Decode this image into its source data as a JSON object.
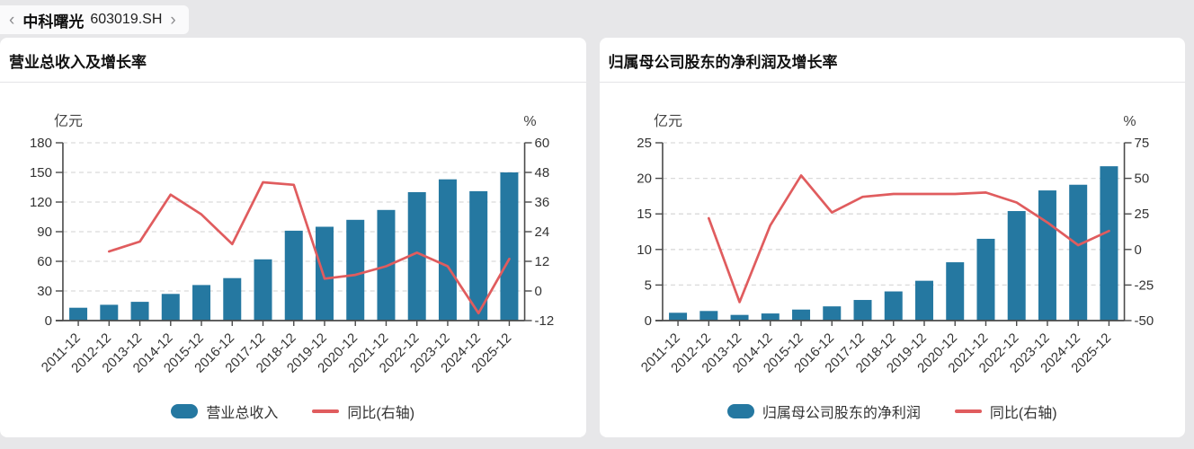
{
  "breadcrumb": {
    "prev": "‹",
    "next": "›",
    "stock_name": "中科曙光",
    "stock_code": "603019.SH"
  },
  "colors": {
    "page_bg": "#e7e7e9",
    "panel_bg": "#ffffff",
    "bar": "#2578a1",
    "line": "#e05c5e",
    "grid": "#d9d9d9",
    "axis": "#4a4a4a",
    "tick_text": "#333333",
    "unit_text": "#444444"
  },
  "chart_data": [
    {
      "type": "bar+line",
      "title": "营业总收入及增长率",
      "categories": [
        "2011-12",
        "2012-12",
        "2013-12",
        "2014-12",
        "2015-12",
        "2016-12",
        "2017-12",
        "2018-12",
        "2019-12",
        "2020-12",
        "2021-12",
        "2022-12",
        "2023-12",
        "2024-12",
        "2025-12"
      ],
      "series": [
        {
          "name": "营业总收入",
          "type": "bar",
          "axis": "left",
          "unit": "亿元",
          "color": "#2578a1",
          "values": [
            13,
            16,
            19,
            27,
            36,
            43,
            62,
            91,
            95,
            102,
            112,
            130,
            143,
            131,
            150
          ]
        },
        {
          "name": "同比(右轴)",
          "type": "line",
          "axis": "right",
          "unit": "%",
          "color": "#e05c5e",
          "values": [
            null,
            16,
            20,
            39,
            31,
            19,
            44,
            43,
            5,
            6.5,
            10,
            15.5,
            10,
            -9,
            13
          ]
        }
      ],
      "left_axis": {
        "label": "亿元",
        "min": 0,
        "max": 180,
        "ticks": [
          0,
          30,
          60,
          90,
          120,
          150,
          180
        ]
      },
      "right_axis": {
        "label": "%",
        "min": -12,
        "max": 60,
        "ticks": [
          -12,
          0,
          12,
          24,
          36,
          48,
          60
        ]
      },
      "grid": "dashed",
      "legend_position": "bottom"
    },
    {
      "type": "bar+line",
      "title": "归属母公司股东的净利润及增长率",
      "categories": [
        "2011-12",
        "2012-12",
        "2013-12",
        "2014-12",
        "2015-12",
        "2016-12",
        "2017-12",
        "2018-12",
        "2019-12",
        "2020-12",
        "2021-12",
        "2022-12",
        "2023-12",
        "2024-12",
        "2025-12"
      ],
      "series": [
        {
          "name": "归属母公司股东的净利润",
          "type": "bar",
          "axis": "left",
          "unit": "亿元",
          "color": "#2578a1",
          "values": [
            1.1,
            1.35,
            0.8,
            1.0,
            1.55,
            2.0,
            2.9,
            4.1,
            5.6,
            8.2,
            11.5,
            15.4,
            18.3,
            19.1,
            21.7
          ]
        },
        {
          "name": "同比(右轴)",
          "type": "line",
          "axis": "right",
          "unit": "%",
          "color": "#e05c5e",
          "values": [
            null,
            22,
            -37,
            17,
            52,
            26,
            37,
            39,
            39,
            39,
            40,
            33,
            19,
            3,
            13
          ]
        }
      ],
      "left_axis": {
        "label": "亿元",
        "min": 0,
        "max": 25,
        "ticks": [
          0,
          5,
          10,
          15,
          20,
          25
        ]
      },
      "right_axis": {
        "label": "%",
        "min": -50,
        "max": 75,
        "ticks": [
          -50,
          -25,
          0,
          25,
          50,
          75
        ]
      },
      "grid": "dashed",
      "legend_position": "bottom"
    }
  ]
}
